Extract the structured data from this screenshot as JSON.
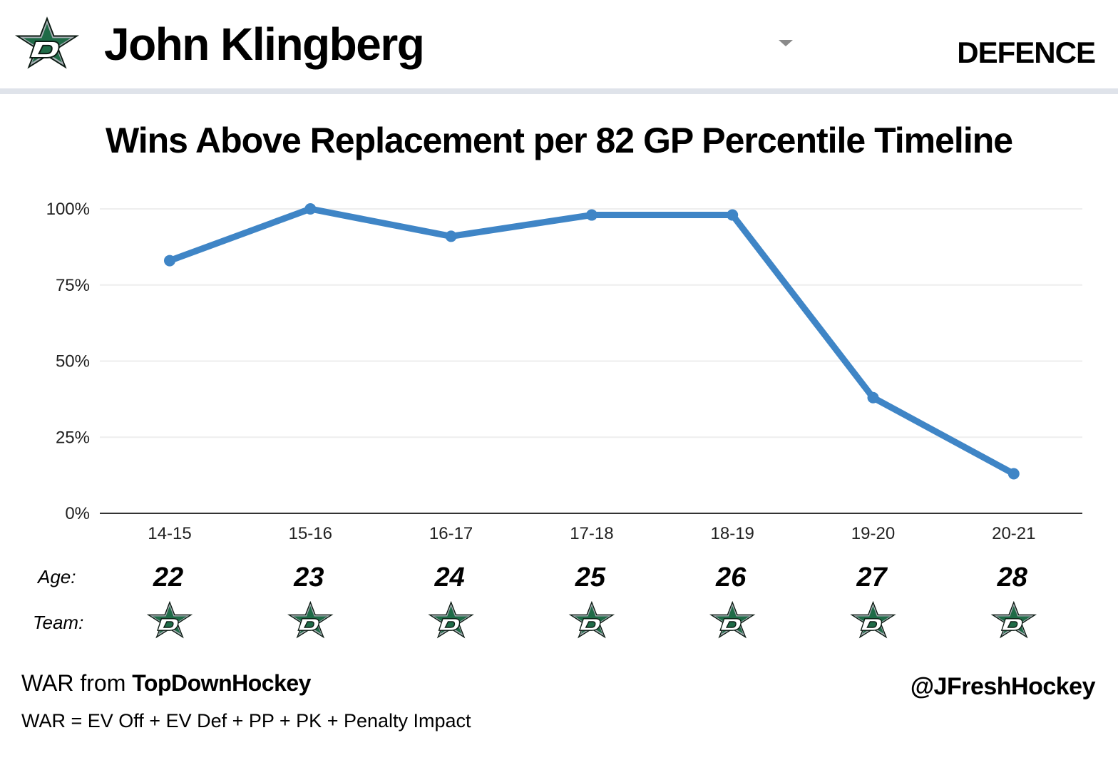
{
  "header": {
    "player_name": "John Klingberg",
    "position": "DEFENCE",
    "logo_icon": "dallas-stars-logo-icon",
    "dropdown_icon": "dropdown-caret-icon"
  },
  "labels": {
    "age": "Age:",
    "team": "Team:"
  },
  "footer": {
    "source_prefix": "WAR from",
    "source_name": "TopDownHockey",
    "formula": "WAR = EV Off + EV Def + PP + PK + Penalty Impact",
    "handle": "@JFreshHockey"
  },
  "colors": {
    "line": "#3f85c6",
    "star_green": "#1f6b47",
    "star_silver": "#a9b0b6",
    "header_rule": "#dfe3ea",
    "gridline": "#eeeeee"
  },
  "chart_data": {
    "type": "line",
    "title": "Wins Above Replacement per 82 GP Percentile Timeline",
    "xlabel": "",
    "ylabel": "",
    "categories": [
      "14-15",
      "15-16",
      "16-17",
      "17-18",
      "18-19",
      "19-20",
      "20-21"
    ],
    "series": [
      {
        "values": [
          83,
          100,
          91,
          98,
          98,
          38,
          13
        ]
      }
    ],
    "ylim": [
      0,
      100
    ],
    "yticks": [
      0,
      25,
      50,
      75,
      100
    ],
    "ytick_labels": [
      "0%",
      "25%",
      "50%",
      "75%",
      "100%"
    ],
    "grid": true,
    "legend": "none",
    "ages": [
      "22",
      "23",
      "24",
      "25",
      "26",
      "27",
      "28"
    ],
    "teams": [
      "DAL",
      "DAL",
      "DAL",
      "DAL",
      "DAL",
      "DAL",
      "DAL"
    ]
  }
}
